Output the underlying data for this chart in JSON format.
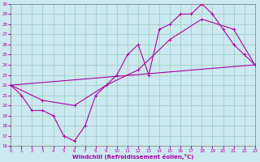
{
  "xlabel": "Windchill (Refroidissement éolien,°C)",
  "bg_color": "#cce8f0",
  "grid_color": "#99ccbb",
  "line_color": "#aa00aa",
  "xmin": 0,
  "xmax": 23,
  "ymin": 16,
  "ymax": 30,
  "line1_x": [
    0,
    1,
    2,
    3,
    4,
    5,
    6,
    7,
    8,
    10,
    11,
    12,
    13,
    14,
    15,
    16,
    17,
    18,
    19,
    20,
    21,
    22,
    23
  ],
  "line1_y": [
    22,
    21,
    19.5,
    19.5,
    19,
    17,
    16.5,
    18,
    21,
    23,
    25,
    26,
    23,
    27.5,
    28,
    29,
    29,
    30,
    29,
    27.5,
    26,
    25,
    24
  ],
  "line2_x": [
    0,
    3,
    6,
    9,
    12,
    15,
    18,
    21,
    23
  ],
  "line2_y": [
    22,
    20.5,
    20,
    22,
    23.5,
    26.5,
    28.5,
    27.5,
    24
  ],
  "line3_x": [
    0,
    23
  ],
  "line3_y": [
    22,
    24
  ]
}
